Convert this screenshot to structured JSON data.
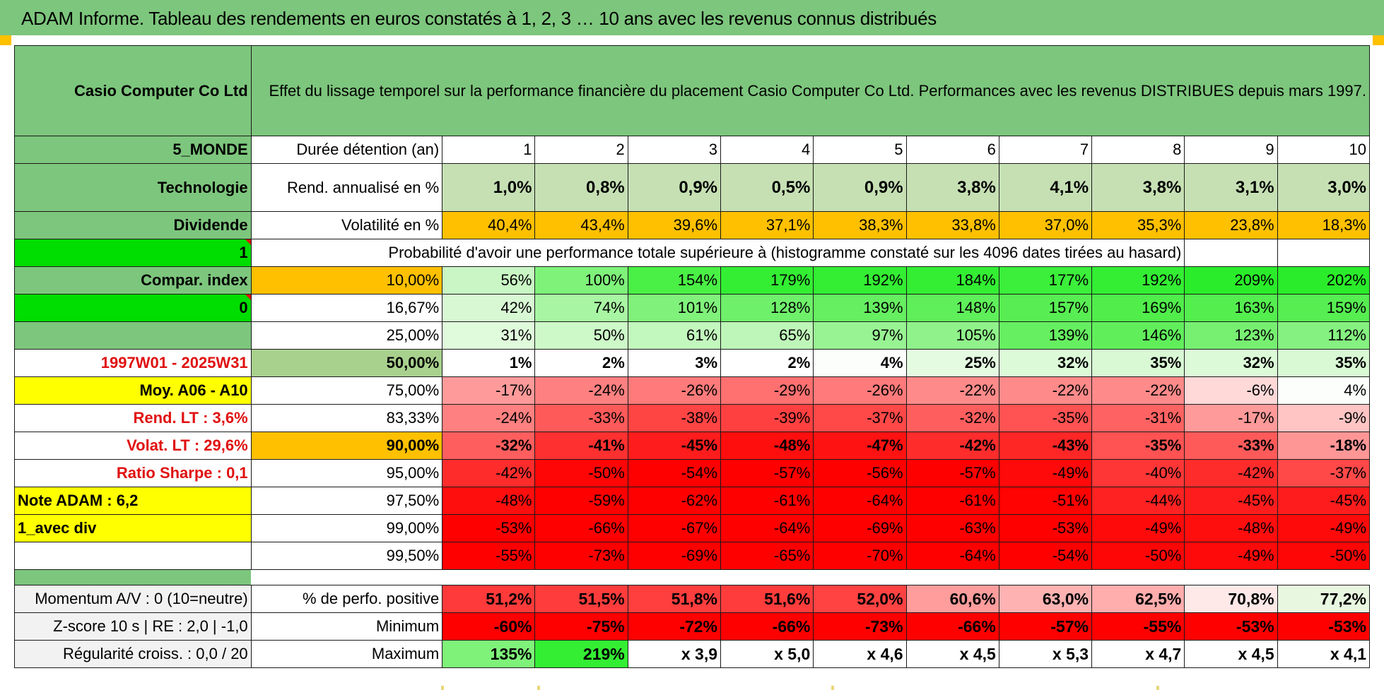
{
  "title": "ADAM Informe. Tableau des rendements en euros constatés à 1, 2, 3 … 10 ans avec les revenus connus distribués",
  "description": "Effet du lissage temporel sur la performance financière du placement Casio Computer Co Ltd. Performances avec les revenus DISTRIBUES depuis mars 1997.",
  "side": {
    "company": "Casio Computer Co Ltd",
    "region": "5_MONDE",
    "sector": "Technologie",
    "type": "Dividende",
    "flag1": "1",
    "compar_label": "Compar. index",
    "flag0": "0",
    "period": "1997W01 - 2025W31",
    "moy": "Moy. A06 - A10",
    "rend_lt": "Rend. LT :    3,6%",
    "volat_lt": "Volat. LT :   29,6%",
    "sharpe": "Ratio Sharpe :    0,1",
    "note": "Note ADAM : 6,2",
    "avec_div": "1_avec div"
  },
  "labels": {
    "duree": "Durée détention (an)",
    "rend": "Rend. annualisé en %",
    "vol": "Volatilité en %",
    "prob_caption": "Probabilité d'avoir une performance totale supérieure à (histogramme constaté sur les 4096 dates tirées au hasard)",
    "momentum": "Momentum A/V : 0 (10=neutre)",
    "zscore": "Z-score 10 s | RE : 2,0 | -1,0",
    "regularite": "Régularité croiss. : 0,0 / 20",
    "perf_pos": "% de perfo. positive",
    "minimum": "Minimum",
    "maximum": "Maximum"
  },
  "years": [
    "1",
    "2",
    "3",
    "4",
    "5",
    "6",
    "7",
    "8",
    "9",
    "10"
  ],
  "rend": [
    "1,0%",
    "0,8%",
    "0,9%",
    "0,5%",
    "0,9%",
    "3,8%",
    "4,1%",
    "3,8%",
    "3,1%",
    "3,0%"
  ],
  "rend_colors": [
    "#c6e0b4",
    "#c6e0b4",
    "#c6e0b4",
    "#c6e0b4",
    "#c6e0b4",
    "#c6e0b4",
    "#c6e0b4",
    "#c6e0b4",
    "#c6e0b4",
    "#c6e0b4"
  ],
  "vol": [
    "40,4%",
    "43,4%",
    "39,6%",
    "37,1%",
    "38,3%",
    "33,8%",
    "37,0%",
    "35,3%",
    "23,8%",
    "18,3%"
  ],
  "vol_color": "#ffc000",
  "prob_rows": [
    {
      "pct": "10,00%",
      "style": "pct-orange",
      "bold": false,
      "big": false,
      "values": [
        "56%",
        "100%",
        "154%",
        "179%",
        "192%",
        "184%",
        "177%",
        "192%",
        "209%",
        "202%"
      ],
      "colors": [
        "#c9f6c4",
        "#7ff27a",
        "#4af045",
        "#33ee33",
        "#33ee33",
        "#33ee33",
        "#3bef3b",
        "#33ee33",
        "#2aec2a",
        "#2aec2a"
      ]
    },
    {
      "pct": "16,67%",
      "style": "pct-white",
      "bold": false,
      "big": false,
      "values": [
        "42%",
        "74%",
        "101%",
        "128%",
        "139%",
        "148%",
        "157%",
        "169%",
        "163%",
        "159%"
      ],
      "colors": [
        "#d8f8d4",
        "#a8f6a3",
        "#80f27b",
        "#6ff06a",
        "#66ef61",
        "#5fef5a",
        "#58ee53",
        "#50ed4b",
        "#54ee4f",
        "#56ee51"
      ]
    },
    {
      "pct": "25,00%",
      "style": "pct-white",
      "bold": false,
      "big": false,
      "values": [
        "31%",
        "50%",
        "61%",
        "65%",
        "97%",
        "105%",
        "139%",
        "146%",
        "123%",
        "112%"
      ],
      "colors": [
        "#e0fadc",
        "#cdf8c8",
        "#c2f7bd",
        "#beF6b9",
        "#98f393",
        "#8ff28a",
        "#66ef61",
        "#60ef5b",
        "#77f072",
        "#85f180"
      ]
    },
    {
      "pct": "50,00%",
      "style": "pct-green",
      "bold": true,
      "big": true,
      "values": [
        "1%",
        "2%",
        "3%",
        "2%",
        "4%",
        "25%",
        "32%",
        "35%",
        "32%",
        "35%"
      ],
      "colors": [
        "#ffffff",
        "#ffffff",
        "#ffffff",
        "#ffffff",
        "#fbfefb",
        "#e4fbe1",
        "#dcfad8",
        "#d8f9d4",
        "#dcfad8",
        "#d8f9d4"
      ]
    },
    {
      "pct": "75,00%",
      "style": "pct-white",
      "bold": false,
      "big": false,
      "values": [
        "-17%",
        "-24%",
        "-26%",
        "-29%",
        "-26%",
        "-22%",
        "-22%",
        "-22%",
        "-6%",
        "4%"
      ],
      "colors": [
        "#ff9a9a",
        "#ff8080",
        "#ff7a7a",
        "#ff7070",
        "#ff7a7a",
        "#ff8a8a",
        "#ff8a8a",
        "#ff8a8a",
        "#ffd8d8",
        "#fbfefb"
      ]
    },
    {
      "pct": "83,33%",
      "style": "pct-white",
      "bold": false,
      "big": false,
      "values": [
        "-24%",
        "-33%",
        "-38%",
        "-39%",
        "-37%",
        "-32%",
        "-35%",
        "-31%",
        "-17%",
        "-9%"
      ],
      "colors": [
        "#ff8080",
        "#ff5a5a",
        "#ff4444",
        "#ff4040",
        "#ff4848",
        "#ff5e5e",
        "#ff5252",
        "#ff6262",
        "#ff9a9a",
        "#ffc4c4"
      ]
    },
    {
      "pct": "90,00%",
      "style": "pct-orange",
      "bold": true,
      "big": false,
      "values": [
        "-32%",
        "-41%",
        "-45%",
        "-48%",
        "-47%",
        "-42%",
        "-43%",
        "-35%",
        "-33%",
        "-18%"
      ],
      "colors": [
        "#ff5e5e",
        "#ff3030",
        "#ff1c1c",
        "#ff0e0e",
        "#ff1212",
        "#ff2c2c",
        "#ff2626",
        "#ff5252",
        "#ff5a5a",
        "#ff9696"
      ]
    },
    {
      "pct": "95,00%",
      "style": "pct-white",
      "bold": false,
      "big": false,
      "values": [
        "-42%",
        "-50%",
        "-54%",
        "-57%",
        "-56%",
        "-57%",
        "-49%",
        "-40%",
        "-42%",
        "-37%"
      ],
      "colors": [
        "#ff2c2c",
        "#ff0606",
        "#ff0000",
        "#ff0000",
        "#ff0000",
        "#ff0000",
        "#ff0a0a",
        "#ff3636",
        "#ff2c2c",
        "#ff4848"
      ]
    },
    {
      "pct": "97,50%",
      "style": "pct-white",
      "bold": false,
      "big": false,
      "values": [
        "-48%",
        "-59%",
        "-62%",
        "-61%",
        "-64%",
        "-61%",
        "-51%",
        "-44%",
        "-45%",
        "-45%"
      ],
      "colors": [
        "#ff0e0e",
        "#ff0000",
        "#ff0000",
        "#ff0000",
        "#ff0000",
        "#ff0000",
        "#ff0202",
        "#ff2222",
        "#ff1c1c",
        "#ff1c1c"
      ]
    },
    {
      "pct": "99,00%",
      "style": "pct-white",
      "bold": false,
      "big": false,
      "values": [
        "-53%",
        "-66%",
        "-67%",
        "-64%",
        "-69%",
        "-63%",
        "-53%",
        "-49%",
        "-48%",
        "-49%"
      ],
      "colors": [
        "#ff0000",
        "#ff0000",
        "#ff0000",
        "#ff0000",
        "#ff0000",
        "#ff0000",
        "#ff0000",
        "#ff0a0a",
        "#ff0e0e",
        "#ff0a0a"
      ]
    },
    {
      "pct": "99,50%",
      "style": "pct-white",
      "bold": false,
      "big": false,
      "values": [
        "-55%",
        "-73%",
        "-69%",
        "-65%",
        "-70%",
        "-64%",
        "-54%",
        "-50%",
        "-49%",
        "-50%"
      ],
      "colors": [
        "#ff0000",
        "#ff0000",
        "#ff0000",
        "#ff0000",
        "#ff0000",
        "#ff0000",
        "#ff0000",
        "#ff0606",
        "#ff0a0a",
        "#ff0606"
      ]
    }
  ],
  "stats": {
    "perf_pos": [
      "51,2%",
      "51,5%",
      "51,8%",
      "51,6%",
      "52,0%",
      "60,6%",
      "63,0%",
      "62,5%",
      "70,8%",
      "77,2%"
    ],
    "perf_pos_colors": [
      "#ff3a3a",
      "#ff3c3c",
      "#ff3e3e",
      "#ff3c3c",
      "#ff4242",
      "#ff9c9c",
      "#ffb2b2",
      "#ffadad",
      "#ffe8e8",
      "#e8f7e0"
    ],
    "minimum": [
      "-60%",
      "-75%",
      "-72%",
      "-66%",
      "-73%",
      "-66%",
      "-57%",
      "-55%",
      "-53%",
      "-53%"
    ],
    "minimum_colors": [
      "#ff0000",
      "#ff0000",
      "#ff0000",
      "#ff0000",
      "#ff0000",
      "#ff0000",
      "#ff0000",
      "#ff0000",
      "#ff0000",
      "#ff0000"
    ],
    "maximum": [
      "135%",
      "219%",
      "x 3,9",
      "x 5,0",
      "x 4,6",
      "x 4,5",
      "x 5,3",
      "x 4,7",
      "x 4,5",
      "x 4,1"
    ],
    "maximum_colors": [
      "#7ff27a",
      "#33ee33",
      "#ffffff",
      "#ffffff",
      "#ffffff",
      "#ffffff",
      "#ffffff",
      "#ffffff",
      "#ffffff",
      "#ffffff"
    ]
  }
}
